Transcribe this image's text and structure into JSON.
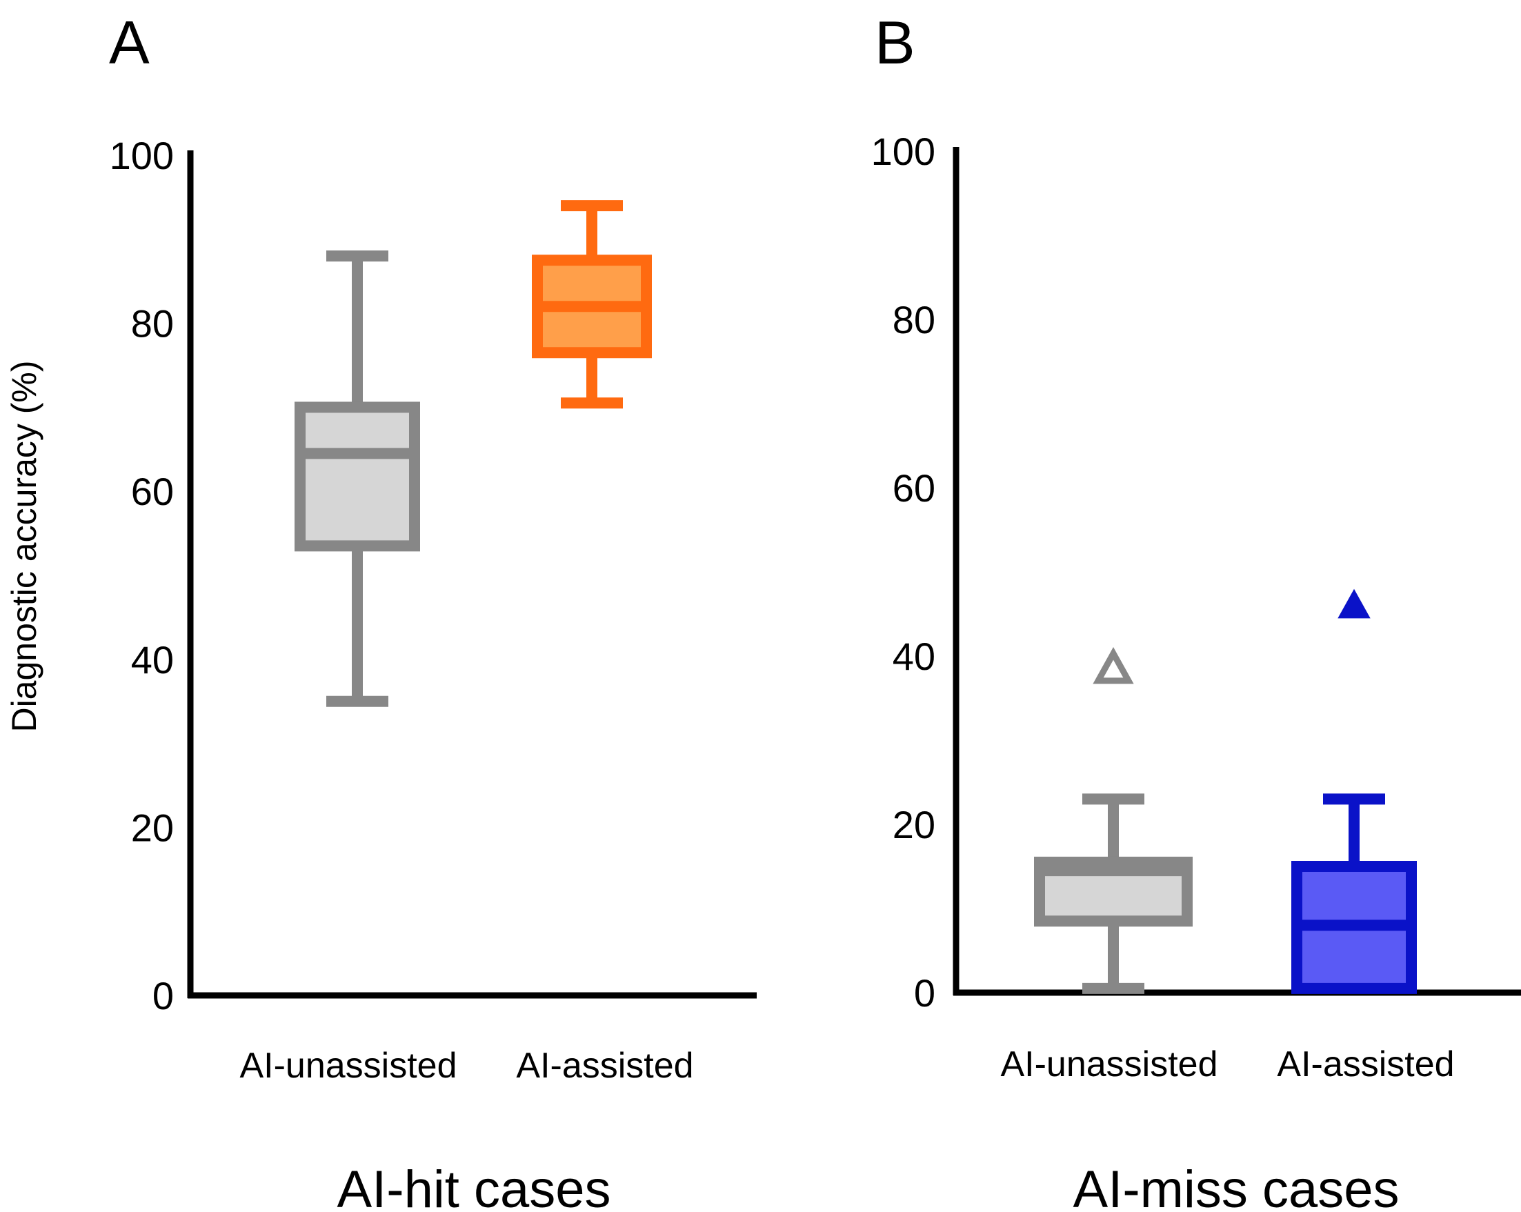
{
  "y_axis_label": "Diagnostic accuracy (%)",
  "chart_data": [
    {
      "type": "box",
      "panel_label": "A",
      "title": "AI-hit cases",
      "ylabel": "Diagnostic accuracy (%)",
      "ylim": [
        0,
        100
      ],
      "yticks": [
        0,
        20,
        40,
        60,
        80,
        100
      ],
      "ytick_labels": [
        "0",
        "20",
        "40",
        "60",
        "80",
        "100"
      ],
      "grid": false,
      "categories": [
        "AI-unassisted",
        "AI-assisted"
      ],
      "boxes": [
        {
          "category": "AI-unassisted",
          "min": 35,
          "q1": 53.5,
          "median": 64.5,
          "q3": 70,
          "max": 88,
          "stroke": "#878787",
          "fill": "#d6d6d6",
          "outliers": []
        },
        {
          "category": "AI-assisted",
          "min": 70.5,
          "q1": 76.5,
          "median": 82,
          "q3": 87.5,
          "max": 94,
          "stroke": "#ff6a10",
          "fill": "#ff9f4a",
          "outliers": []
        }
      ]
    },
    {
      "type": "box",
      "panel_label": "B",
      "title": "AI-miss cases",
      "ylabel": "",
      "ylim": [
        0,
        100
      ],
      "yticks": [
        0,
        20,
        40,
        60,
        80,
        100
      ],
      "ytick_labels": [
        "0",
        "20",
        "40",
        "60",
        "80",
        "100"
      ],
      "grid": false,
      "categories": [
        "AI-unassisted",
        "AI-assisted"
      ],
      "boxes": [
        {
          "category": "AI-unassisted",
          "min": 0.5,
          "q1": 8.5,
          "median": 14.5,
          "q3": 15.5,
          "max": 23,
          "stroke": "#878787",
          "fill": "#d6d6d6",
          "outliers": [
            {
              "value": 38.5,
              "marker": "triangle-open",
              "color": "#878787"
            }
          ]
        },
        {
          "category": "AI-assisted",
          "min": 0.5,
          "q1": 0.5,
          "median": 8,
          "q3": 15,
          "max": 23,
          "stroke": "#0a12c8",
          "fill": "#5a5af5",
          "outliers": [
            {
              "value": 46,
              "marker": "triangle-filled",
              "color": "#0a12c8"
            }
          ]
        }
      ]
    }
  ]
}
